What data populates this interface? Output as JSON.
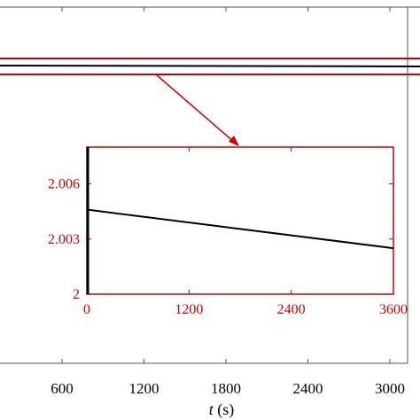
{
  "chart_data": [
    {
      "type": "line",
      "role": "main",
      "xlabel_italic": "t",
      "xlabel_unit": " (s)",
      "x_ticks": [
        "600",
        "1200",
        "1800",
        "2400",
        "3000"
      ],
      "x_tick_values": [
        600,
        1200,
        1800,
        2400,
        3000
      ],
      "xlim": [
        0,
        3200
      ],
      "grid": false,
      "series": [
        {
          "color": "#000000",
          "x": [
            0,
            3200
          ],
          "y": [
            2.0046,
            2.0023
          ]
        }
      ],
      "zoom_box_color": "#cc0000"
    },
    {
      "type": "line",
      "role": "inset",
      "x_ticks": [
        "0",
        "1200",
        "2400",
        "3600"
      ],
      "x_tick_values": [
        0,
        1200,
        2400,
        3600
      ],
      "y_ticks": [
        "2",
        "2.003",
        "2.006"
      ],
      "y_tick_values": [
        2.0,
        2.003,
        2.006
      ],
      "xlim": [
        0,
        3600
      ],
      "ylim": [
        2.0,
        2.008
      ],
      "axis_color": "#cc0000",
      "series": [
        {
          "color": "#000000",
          "x": [
            0,
            3600
          ],
          "y": [
            2.0046,
            2.0025
          ]
        }
      ],
      "initial_transient": {
        "color": "#000000",
        "x": 0,
        "y": [
          2.0,
          2.008
        ]
      }
    }
  ]
}
